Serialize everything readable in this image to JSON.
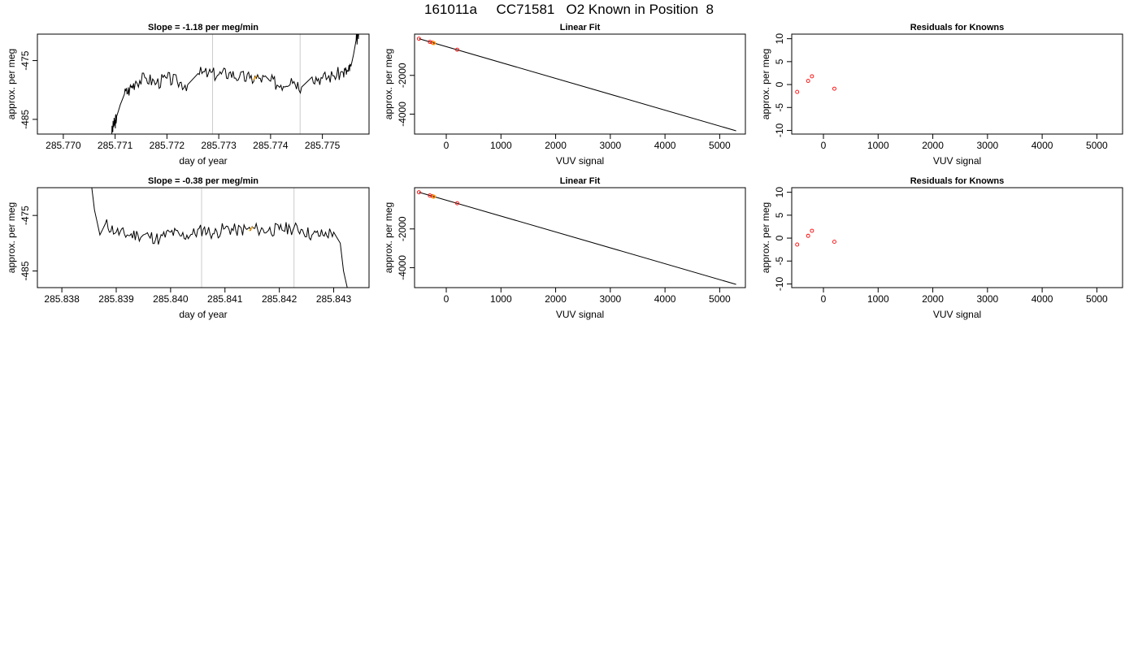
{
  "page": {
    "title": "161011a     CC71581   O2 Known in Position  8"
  },
  "colors": {
    "trace": "#000000",
    "window_line": "#cccccc",
    "highlight": "#ffa500",
    "known_point": "#ff0000"
  },
  "chart_data": [
    {
      "type": "line",
      "title": "Slope =  -1.18  per meg/min",
      "xlabel": "day of year",
      "ylabel": "approx. per meg",
      "xlim": [
        285.7695,
        285.7759
      ],
      "ylim": [
        -487.5,
        -470.5
      ],
      "xticks": [
        "285.770",
        "285.771",
        "285.772",
        "285.773",
        "285.774",
        "285.775"
      ],
      "xtick_values": [
        285.77,
        285.771,
        285.772,
        285.773,
        285.774,
        285.775
      ],
      "yticks": [
        "-475",
        "-485"
      ],
      "ytick_values": [
        -475,
        -485
      ],
      "vlines": [
        285.77288,
        285.77457
      ],
      "highlight_x": 285.7737,
      "seed": 3,
      "series": [
        {
          "x": [
            285.77093,
            285.77097,
            285.771,
            285.77103,
            285.7711,
            285.77118,
            285.77128,
            285.7714,
            285.7716,
            285.7718,
            285.772,
            285.7722,
            285.7724,
            285.7726,
            285.7728,
            285.773,
            285.7732,
            285.7734,
            285.7736,
            285.7738,
            285.774,
            285.7742,
            285.7744,
            285.7746,
            285.7748,
            285.775,
            285.7752,
            285.7754,
            285.7755,
            285.77555,
            285.7756,
            285.77565,
            285.7757
          ],
          "values": [
            -487.5,
            -486.0,
            -485.5,
            -484.5,
            -482.5,
            -480.7,
            -479.9,
            -478.5,
            -478.0,
            -478.8,
            -478.0,
            -478.6,
            -479.1,
            -477.2,
            -477.2,
            -477.4,
            -477.1,
            -477.8,
            -478.0,
            -478.0,
            -478.5,
            -479.2,
            -478.0,
            -479.5,
            -477.8,
            -478.0,
            -477.6,
            -477.0,
            -476.8,
            -476.0,
            -474.0,
            -471.5,
            -470.5
          ]
        }
      ]
    },
    {
      "type": "line",
      "title": "Linear Fit",
      "xlabel": "VUV signal",
      "ylabel": "approx. per meg",
      "xlim": [
        -580,
        5470
      ],
      "ylim": [
        -5030,
        130
      ],
      "xticks": [
        "0",
        "1000",
        "2000",
        "3000",
        "4000",
        "5000"
      ],
      "xtick_values": [
        0,
        1000,
        2000,
        3000,
        4000,
        5000
      ],
      "yticks": [
        "-2000",
        "-4000"
      ],
      "ytick_values": [
        -2000,
        -4000
      ],
      "line": {
        "x": [
          -500,
          5300
        ],
        "y": [
          -107,
          -4862
        ]
      },
      "points": {
        "x": [
          -500,
          -300,
          -250,
          200
        ],
        "y": [
          -107,
          -273,
          -312,
          -674
        ]
      },
      "highlight_points": {
        "x": [
          -230
        ],
        "y": [
          -331
        ]
      }
    },
    {
      "type": "scatter",
      "title": "Residuals for Knowns",
      "xlabel": "VUV signal",
      "ylabel": "approx. per meg",
      "xlim": [
        -580,
        5470
      ],
      "ylim": [
        -10.8,
        11
      ],
      "xticks": [
        "0",
        "1000",
        "2000",
        "3000",
        "4000",
        "5000"
      ],
      "xtick_values": [
        0,
        1000,
        2000,
        3000,
        4000,
        5000
      ],
      "yticks": [
        "10",
        "5",
        "0",
        "-5",
        "-10"
      ],
      "ytick_values": [
        10,
        5,
        0,
        -5,
        -10
      ],
      "points": {
        "x": [
          -480,
          -280,
          -210,
          200
        ],
        "y": [
          -1.6,
          0.8,
          1.8,
          -0.9
        ]
      }
    },
    {
      "type": "line",
      "title": "Slope =  -0.38  per meg/min",
      "xlabel": "day of year",
      "ylabel": "approx. per meg",
      "xlim": [
        285.83755,
        285.84365
      ],
      "ylim": [
        -488,
        -470
      ],
      "xticks": [
        "285.838",
        "285.839",
        "285.840",
        "285.841",
        "285.842",
        "285.843"
      ],
      "xtick_values": [
        285.838,
        285.839,
        285.84,
        285.841,
        285.842,
        285.843
      ],
      "yticks": [
        "-475",
        "-485"
      ],
      "ytick_values": [
        -475,
        -485
      ],
      "vlines": [
        285.84057,
        285.84227
      ],
      "highlight_x": 285.84148,
      "seed": 11,
      "series": [
        {
          "x": [
            285.83855,
            285.8386,
            285.8387,
            285.8388,
            285.839,
            285.8392,
            285.8394,
            285.8396,
            285.8398,
            285.84,
            285.8402,
            285.8404,
            285.8406,
            285.8408,
            285.841,
            285.8412,
            285.8414,
            285.8416,
            285.8418,
            285.842,
            285.8422,
            285.8424,
            285.8426,
            285.8428,
            285.843,
            285.84312,
            285.84318,
            285.84325
          ],
          "values": [
            -470,
            -474,
            -478.5,
            -476.5,
            -478.0,
            -478.5,
            -478.5,
            -478.7,
            -479.3,
            -478.0,
            -478.7,
            -478.4,
            -477.5,
            -478.3,
            -477.3,
            -477.7,
            -477.5,
            -477.5,
            -477.7,
            -477.5,
            -477.3,
            -477.5,
            -478.5,
            -478.5,
            -478.0,
            -480.0,
            -485.0,
            -488.0
          ]
        }
      ]
    },
    {
      "type": "line",
      "title": "Linear Fit",
      "xlabel": "VUV signal",
      "ylabel": "approx. per meg",
      "xlim": [
        -580,
        5470
      ],
      "ylim": [
        -5030,
        130
      ],
      "xticks": [
        "0",
        "1000",
        "2000",
        "3000",
        "4000",
        "5000"
      ],
      "xtick_values": [
        0,
        1000,
        2000,
        3000,
        4000,
        5000
      ],
      "yticks": [
        "-2000",
        "-4000"
      ],
      "ytick_values": [
        -2000,
        -4000
      ],
      "line": {
        "x": [
          -500,
          5300
        ],
        "y": [
          -107,
          -4862
        ]
      },
      "points": {
        "x": [
          -500,
          -300,
          -250,
          200
        ],
        "y": [
          -107,
          -273,
          -312,
          -674
        ]
      },
      "highlight_points": {
        "x": [
          -230
        ],
        "y": [
          -331
        ]
      }
    },
    {
      "type": "scatter",
      "title": "Residuals for Knowns",
      "xlabel": "VUV signal",
      "ylabel": "approx. per meg",
      "xlim": [
        -580,
        5470
      ],
      "ylim": [
        -10.8,
        11
      ],
      "xticks": [
        "0",
        "1000",
        "2000",
        "3000",
        "4000",
        "5000"
      ],
      "xtick_values": [
        0,
        1000,
        2000,
        3000,
        4000,
        5000
      ],
      "yticks": [
        "10",
        "5",
        "0",
        "-5",
        "-10"
      ],
      "ytick_values": [
        10,
        5,
        0,
        -5,
        -10
      ],
      "points": {
        "x": [
          -480,
          -280,
          -210,
          200
        ],
        "y": [
          -1.4,
          0.5,
          1.6,
          -0.8
        ]
      }
    }
  ]
}
